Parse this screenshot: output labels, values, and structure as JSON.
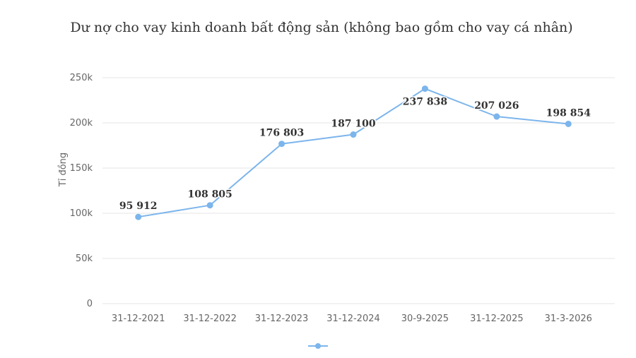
{
  "chart_data": {
    "type": "line",
    "title": "Dư nợ cho vay kinh doanh bất động sản (không bao gồm cho vay cá nhân)",
    "ylabel": "Tỉ đồng",
    "xlabel": "",
    "categories": [
      "31-12-2021",
      "31-12-2022",
      "31-12-2023",
      "31-12-2024",
      "30-9-2025",
      "31-12-2025",
      "31-3-2026"
    ],
    "values": [
      95912,
      108805,
      176803,
      187100,
      237838,
      207026,
      198854
    ],
    "data_labels": [
      "95 912",
      "108 805",
      "176 803",
      "187 100",
      "237 838",
      "207 026",
      "198 854"
    ],
    "label_positions": [
      "above",
      "above",
      "above",
      "above",
      "below",
      "above",
      "above"
    ],
    "ylim": [
      0,
      250000
    ],
    "ytick_interval": 50000,
    "ytick_labels": [
      "0",
      "50k",
      "100k",
      "150k",
      "200k",
      "250k"
    ],
    "grid": true,
    "legend_position": "bottom",
    "line_color": "#7cb5ec",
    "gridline_color": "#e6e6e6",
    "tick_label_color": "#666666",
    "data_label_color": "#333333",
    "title_color": "#333333"
  }
}
